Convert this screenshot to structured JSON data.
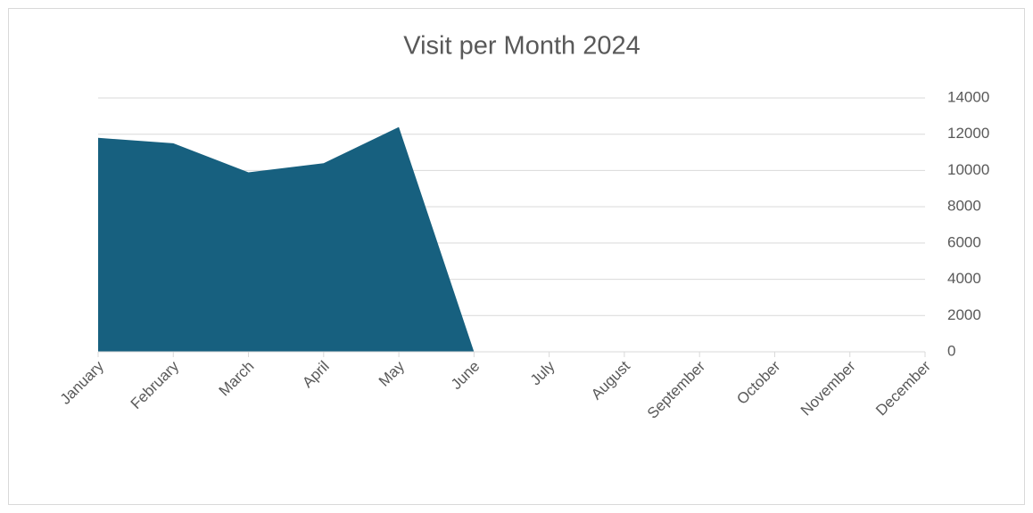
{
  "chart_data": {
    "type": "area",
    "title": "Visit per Month 2024",
    "categories": [
      "January",
      "February",
      "March",
      "April",
      "May",
      "June",
      "July",
      "August",
      "September",
      "October",
      "November",
      "December"
    ],
    "values": [
      11800,
      11500,
      9900,
      10400,
      12400,
      0,
      null,
      null,
      null,
      null,
      null,
      null
    ],
    "color": "#17607f",
    "ylim": [
      0,
      14000
    ],
    "yticks": [
      0,
      2000,
      4000,
      6000,
      8000,
      10000,
      12000,
      14000
    ],
    "grid": true,
    "y_axis_side": "right"
  }
}
